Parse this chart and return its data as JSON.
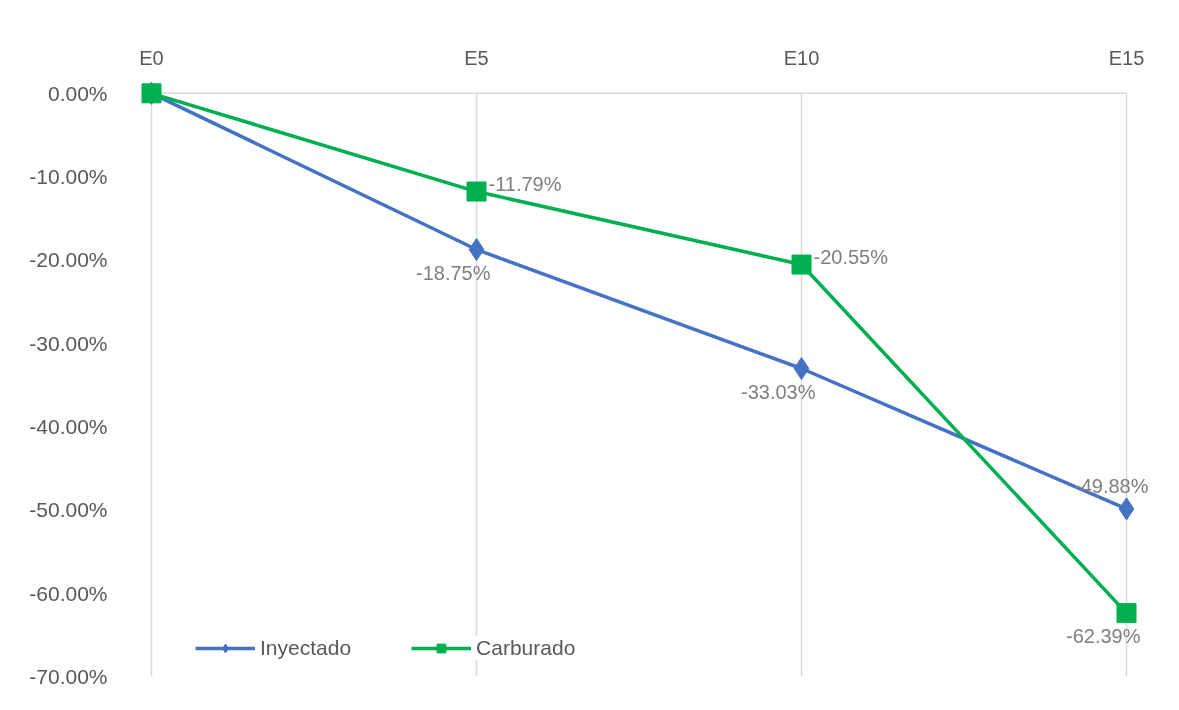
{
  "chart_data": {
    "type": "line",
    "categories": [
      "E0",
      "E5",
      "E10",
      "E15"
    ],
    "series": [
      {
        "name": "Inyectado",
        "color": "#4472c4",
        "marker": "diamond",
        "values": [
          0,
          -18.75,
          -33.03,
          -49.88
        ],
        "value_labels": [
          null,
          "-18.75%",
          "-33.03%",
          "-49.88%"
        ]
      },
      {
        "name": "Carburado",
        "color": "#00b050",
        "marker": "square",
        "values": [
          0,
          -11.79,
          -20.55,
          -62.39
        ],
        "value_labels": [
          null,
          "-11.79%",
          "-20.55%",
          "-62.39%"
        ]
      }
    ],
    "ylim": [
      -70,
      0
    ],
    "yticks": [
      {
        "value": 0,
        "label": "0.00%"
      },
      {
        "value": -10,
        "label": "-10.00%"
      },
      {
        "value": -20,
        "label": "-20.00%"
      },
      {
        "value": -30,
        "label": "-30.00%"
      },
      {
        "value": -40,
        "label": "-40.00%"
      },
      {
        "value": -50,
        "label": "-50.00%"
      },
      {
        "value": -60,
        "label": "-60.00%"
      },
      {
        "value": -70,
        "label": "-70.00%"
      }
    ],
    "grid": "x",
    "legend": "bottom left",
    "line_style": "solid"
  }
}
